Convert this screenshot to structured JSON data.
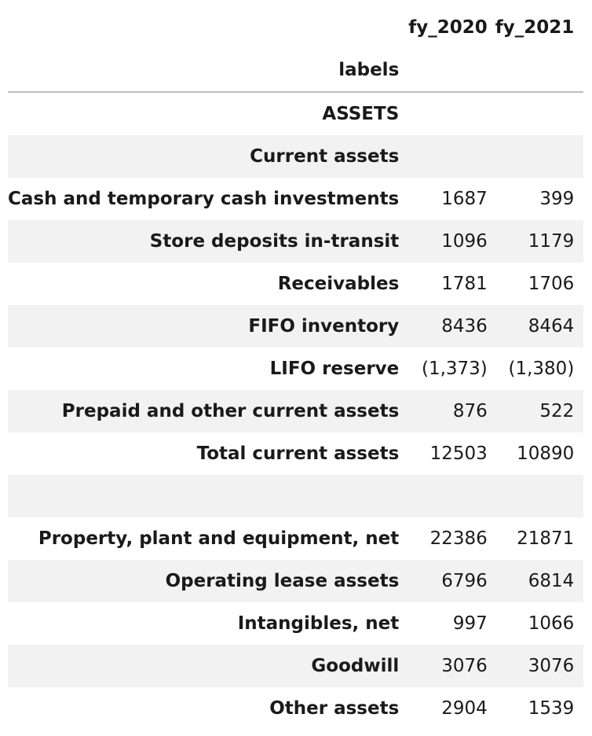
{
  "columns": [
    "fy_2020",
    "fy_2021"
  ],
  "index_name": "labels",
  "rows": [
    {
      "label": "ASSETS",
      "fy_2020": "",
      "fy_2021": ""
    },
    {
      "label": "Current assets",
      "fy_2020": "",
      "fy_2021": ""
    },
    {
      "label": "Cash and temporary cash investments",
      "fy_2020": "1687",
      "fy_2021": "399"
    },
    {
      "label": "Store deposits in-transit",
      "fy_2020": "1096",
      "fy_2021": "1179"
    },
    {
      "label": "Receivables",
      "fy_2020": "1781",
      "fy_2021": "1706"
    },
    {
      "label": "FIFO inventory",
      "fy_2020": "8436",
      "fy_2021": "8464"
    },
    {
      "label": "LIFO reserve",
      "fy_2020": "(1,373)",
      "fy_2021": "(1,380)"
    },
    {
      "label": "Prepaid and other current assets",
      "fy_2020": "876",
      "fy_2021": "522"
    },
    {
      "label": "Total current assets",
      "fy_2020": "12503",
      "fy_2021": "10890"
    },
    {
      "label": "",
      "fy_2020": "",
      "fy_2021": ""
    },
    {
      "label": "Property, plant and equipment, net",
      "fy_2020": "22386",
      "fy_2021": "21871"
    },
    {
      "label": "Operating lease assets",
      "fy_2020": "6796",
      "fy_2021": "6814"
    },
    {
      "label": "Intangibles, net",
      "fy_2020": "997",
      "fy_2021": "1066"
    },
    {
      "label": "Goodwill",
      "fy_2020": "3076",
      "fy_2021": "3076"
    },
    {
      "label": "Other assets",
      "fy_2020": "2904",
      "fy_2021": "1539"
    }
  ]
}
